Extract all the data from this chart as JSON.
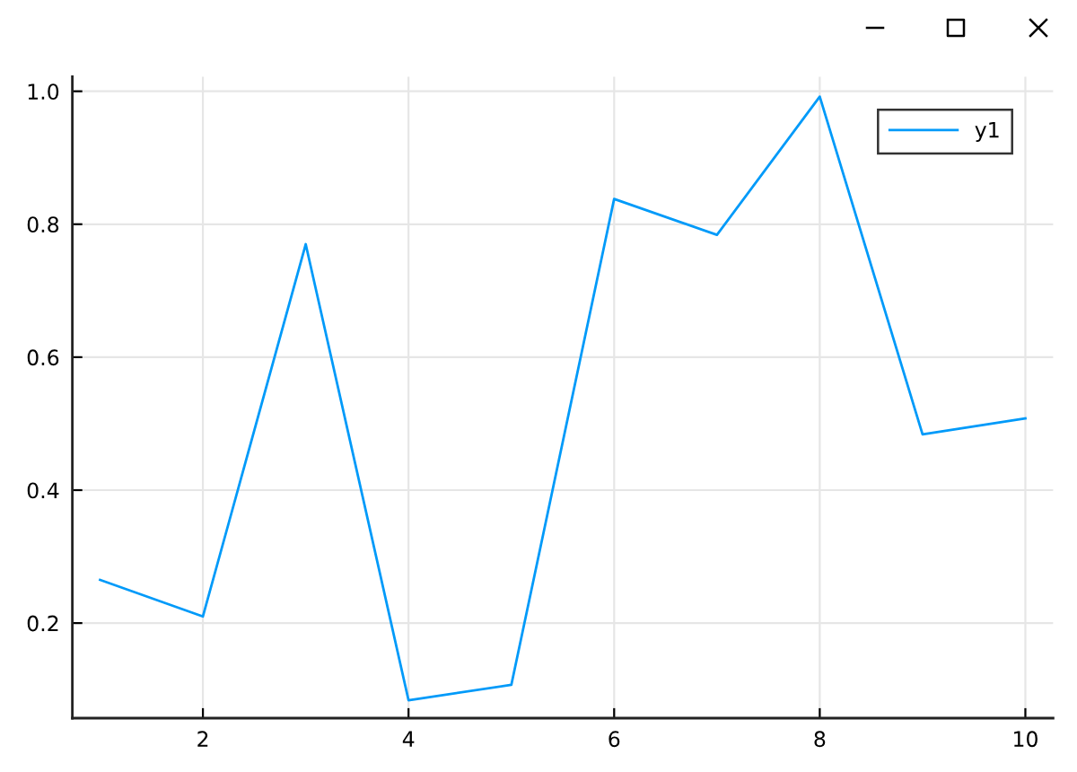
{
  "chart_data": {
    "type": "line",
    "x": [
      1,
      2,
      3,
      4,
      5,
      6,
      7,
      8,
      9,
      10
    ],
    "series": [
      {
        "name": "y1",
        "color": "#009af9",
        "values": [
          0.265,
          0.21,
          0.77,
          0.084,
          0.107,
          0.838,
          0.784,
          0.992,
          0.484,
          0.508
        ]
      }
    ],
    "xlim": [
      0.73,
      10.27
    ],
    "ylim": [
      0.057,
      1.022
    ],
    "xticks": [
      2,
      4,
      6,
      8,
      10
    ],
    "yticks": [
      0.2,
      0.4,
      0.6,
      0.8,
      {
        "value": 1,
        "label": "1.0"
      }
    ],
    "grid": true,
    "legend": "top right",
    "line_style": "solid"
  }
}
